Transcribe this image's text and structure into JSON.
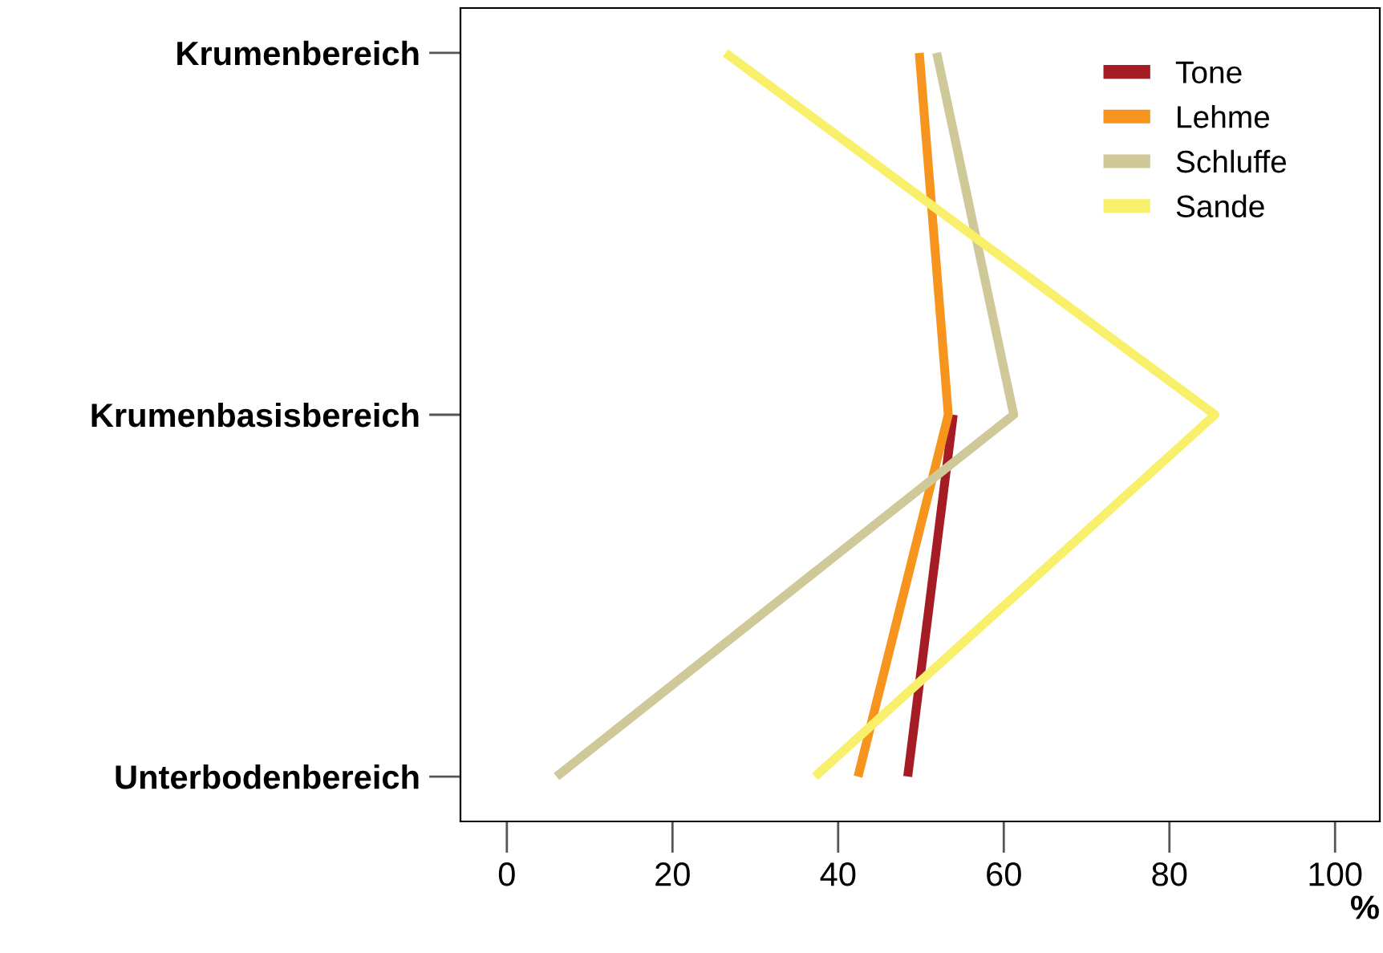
{
  "chart_data": {
    "type": "line",
    "orientation": "horizontal",
    "xlabel": "%",
    "categories": [
      "Krumenbereich",
      "Krumenbasisbereich",
      "Unterbodenbereich"
    ],
    "series": [
      {
        "name": "Tone",
        "color": "#a51c24",
        "values": [
          null,
          53.9,
          48.4
        ]
      },
      {
        "name": "Lehme",
        "color": "#f7941d",
        "values": [
          49.8,
          53.3,
          42.4
        ]
      },
      {
        "name": "Schluffe",
        "color": "#cfc99a",
        "values": [
          51.9,
          61.2,
          6.0
        ]
      },
      {
        "name": "Sande",
        "color": "#f8f06a",
        "values": [
          26.4,
          85.5,
          37.2
        ]
      }
    ],
    "xlim": [
      -5.6,
      105.4
    ],
    "xticks": [
      0,
      20,
      40,
      60,
      80,
      100
    ],
    "grid": false,
    "legend": "top right",
    "marker": "none",
    "line_style": "solid"
  }
}
